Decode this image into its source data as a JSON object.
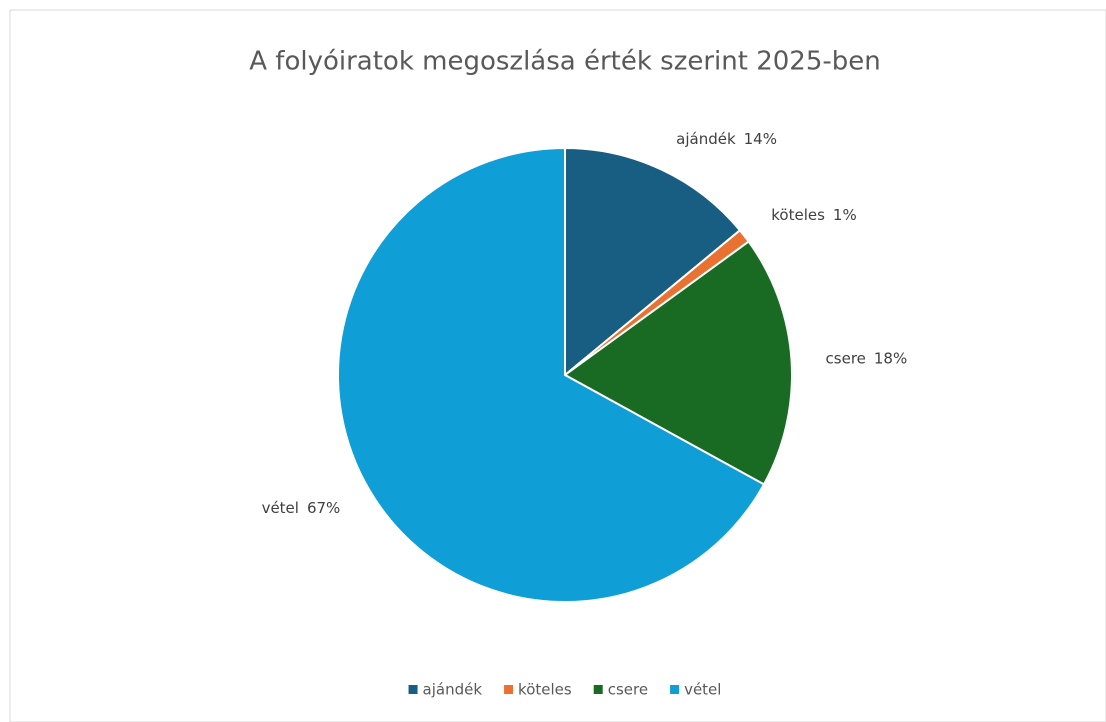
{
  "chart_data": {
    "type": "pie",
    "title": "A folyóiratok megoszlása érték szerint 2025-ben",
    "categories": [
      "ajándék",
      "köteles",
      "csere",
      "vétel"
    ],
    "values": [
      14,
      1,
      18,
      67
    ],
    "value_labels": [
      "14%",
      "1%",
      "18%",
      "67%"
    ],
    "colors": [
      "#175e82",
      "#e97132",
      "#196b24",
      "#0f9ed5"
    ],
    "legend": "bottom"
  }
}
